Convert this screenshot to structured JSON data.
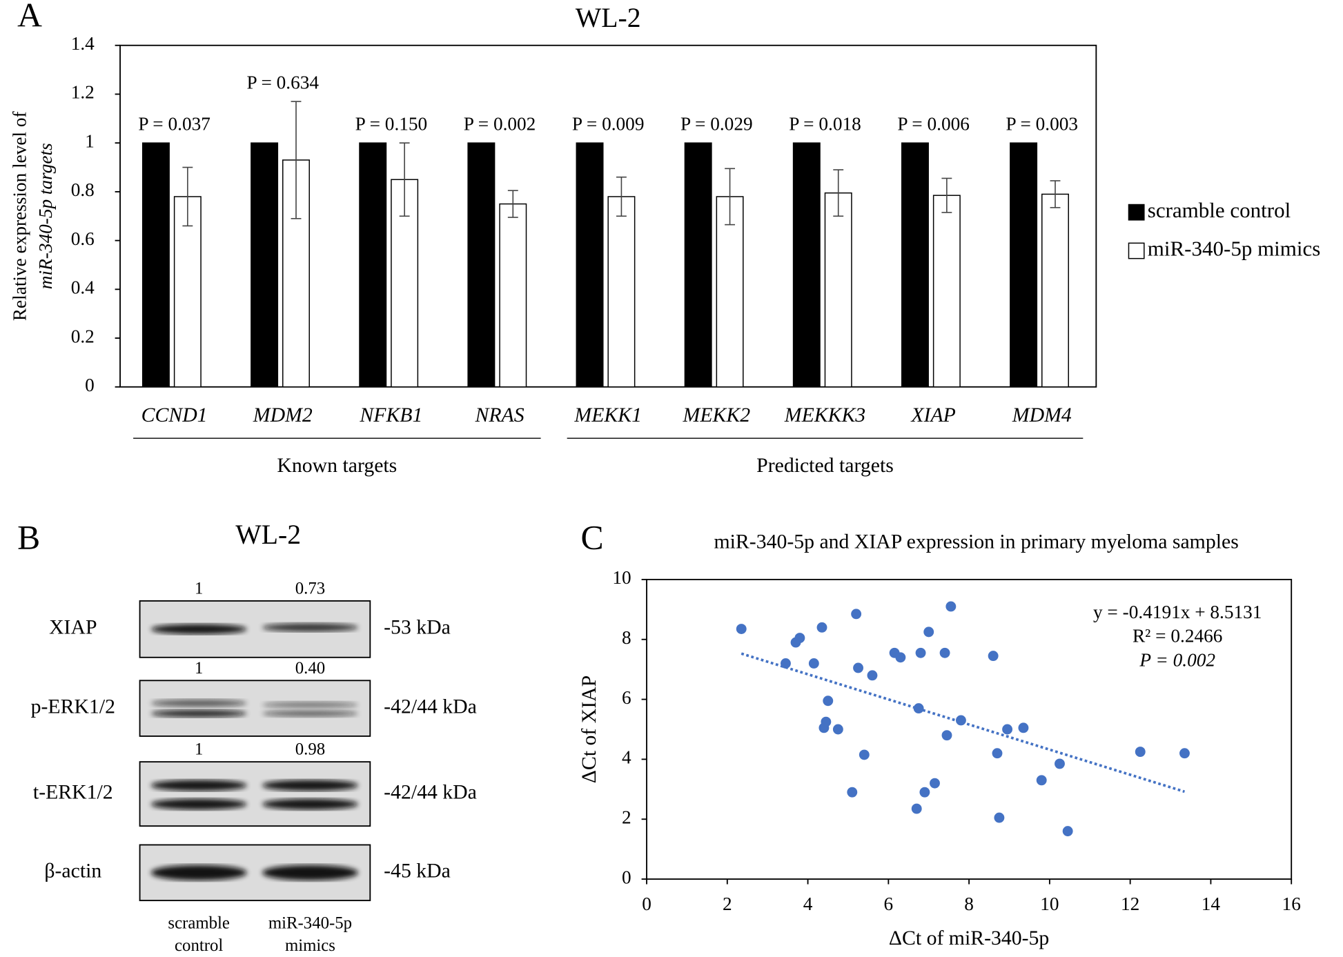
{
  "panel_labels": [
    "A",
    "B",
    "C"
  ],
  "chart_data": [
    {
      "type": "bar",
      "title": "WL-2",
      "ylabel": [
        "Relative expression level of",
        "miR-340-5p targets"
      ],
      "categories": [
        "CCND1",
        "MDM2",
        "NFKB1",
        "NRAS",
        "MEKK1",
        "MEKK2",
        "MEKKK3",
        "XIAP",
        "MDM4"
      ],
      "series": [
        {
          "name": "scramble control",
          "color": "#000000",
          "values": [
            1,
            1,
            1,
            1,
            1,
            1,
            1,
            1,
            1
          ]
        },
        {
          "name": "miR-340-5p mimics",
          "color": "#ffffff",
          "values": [
            0.78,
            0.93,
            0.85,
            0.75,
            0.78,
            0.78,
            0.795,
            0.785,
            0.79
          ],
          "errors": [
            0.12,
            0.24,
            0.15,
            0.055,
            0.08,
            0.115,
            0.095,
            0.07,
            0.055
          ]
        }
      ],
      "annotations": [
        "P = 0.037",
        "P = 0.634",
        "P = 0.150",
        "P = 0.002",
        "P = 0.009",
        "P = 0.029",
        "P = 0.018",
        "P = 0.006",
        "P = 0.003"
      ],
      "groups": [
        {
          "label": "Known targets",
          "members": [
            "CCND1",
            "MDM2",
            "NFKB1",
            "NRAS"
          ]
        },
        {
          "label": "Predicted targets",
          "members": [
            "MEKK1",
            "MEKK2",
            "MEKKK3",
            "XIAP",
            "MDM4"
          ]
        }
      ],
      "ylim": [
        0,
        1.4
      ],
      "yticks": [
        0,
        0.2,
        0.4,
        0.6,
        0.8,
        1,
        1.2,
        1.4
      ],
      "legend": "right"
    },
    {
      "type": "scatter",
      "title": "miR-340-5p and XIAP expression in primary myeloma samples",
      "xlabel": "ΔCt of miR-340-5p",
      "ylabel": "ΔCt of XIAP",
      "x": [
        2.35,
        3.45,
        3.7,
        3.8,
        4.15,
        4.35,
        4.4,
        4.45,
        4.5,
        4.75,
        5.1,
        5.2,
        5.25,
        5.4,
        5.6,
        6.15,
        6.3,
        6.7,
        6.75,
        6.8,
        6.9,
        7.0,
        7.15,
        7.4,
        7.45,
        7.55,
        7.8,
        8.6,
        8.7,
        8.75,
        8.95,
        9.35,
        9.8,
        10.25,
        10.45,
        12.25,
        13.35
      ],
      "values": [
        8.35,
        7.2,
        7.9,
        8.05,
        7.2,
        8.4,
        5.05,
        5.25,
        5.95,
        5.0,
        2.9,
        8.85,
        7.05,
        4.15,
        6.8,
        7.55,
        7.4,
        2.35,
        5.7,
        7.55,
        2.9,
        8.25,
        3.2,
        7.55,
        4.8,
        9.1,
        5.3,
        7.45,
        4.2,
        2.05,
        5.0,
        5.05,
        3.3,
        3.85,
        1.6,
        4.25,
        4.2
      ],
      "color": "#4472c4",
      "xlim": [
        0,
        16
      ],
      "xticks": [
        0,
        2,
        4,
        6,
        8,
        10,
        12,
        14,
        16
      ],
      "ylim": [
        0,
        10
      ],
      "yticks": [
        0,
        2,
        4,
        6,
        8,
        10
      ],
      "trendline": {
        "slope": -0.4191,
        "intercept": 8.5131,
        "equation": "y = -0.4191x + 8.5131",
        "r2": "R² = 0.2466",
        "p": "P = 0.002"
      }
    }
  ],
  "blot": {
    "title": "WL-2",
    "rows": [
      {
        "label": "XIAP",
        "size": "-53 kDa",
        "quant": [
          "1",
          "0.73"
        ]
      },
      {
        "label": "p-ERK1/2",
        "size": "-42/44 kDa",
        "quant": [
          "1",
          "0.40"
        ]
      },
      {
        "label": "t-ERK1/2",
        "size": "-42/44 kDa",
        "quant": [
          "1",
          "0.98"
        ]
      },
      {
        "label": "β-actin",
        "size": "-45 kDa"
      }
    ],
    "lanes": [
      [
        "scramble",
        "control"
      ],
      [
        "miR-340-5p",
        "mimics"
      ]
    ]
  }
}
